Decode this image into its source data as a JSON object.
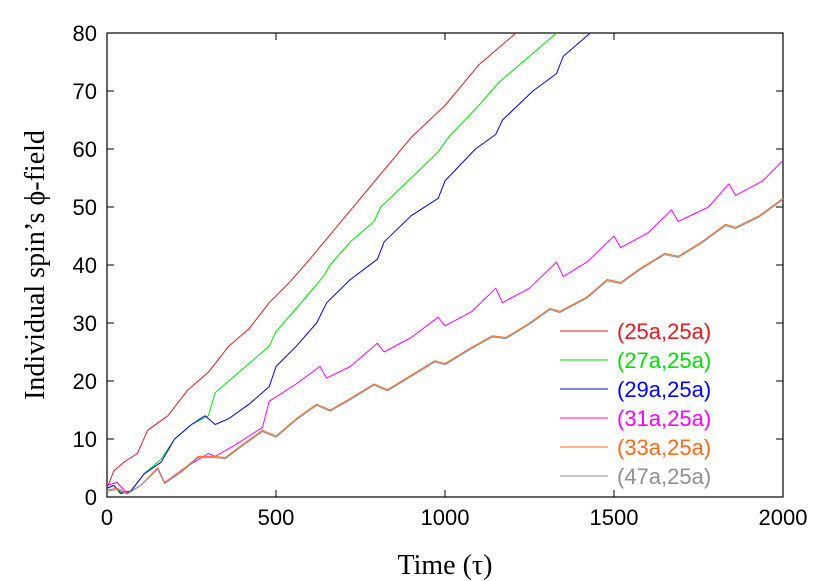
{
  "chart_data": {
    "type": "line",
    "title": "",
    "xlabel": "Time (τ)",
    "ylabel": "Individual spin’s ϕ-field",
    "xlim": [
      0,
      2000
    ],
    "ylim": [
      0,
      80
    ],
    "xticks": [
      0,
      500,
      1000,
      1500,
      2000
    ],
    "yticks": [
      0,
      10,
      20,
      30,
      40,
      50,
      60,
      70,
      80
    ],
    "grid": false,
    "legend_position": "bottom-right",
    "series": [
      {
        "name": "(25a,25a)",
        "color": "#e41a1c",
        "points": [
          [
            0,
            1.5
          ],
          [
            20,
            4.5
          ],
          [
            50,
            6.0
          ],
          [
            90,
            7.5
          ],
          [
            120,
            11.5
          ],
          [
            180,
            14.0
          ],
          [
            240,
            18.5
          ],
          [
            300,
            21.5
          ],
          [
            360,
            26.0
          ],
          [
            420,
            29.0
          ],
          [
            480,
            33.5
          ],
          [
            540,
            37.0
          ],
          [
            600,
            41.0
          ],
          [
            700,
            48.0
          ],
          [
            800,
            55.0
          ],
          [
            900,
            62.0
          ],
          [
            1000,
            67.5
          ],
          [
            1100,
            74.5
          ],
          [
            1210,
            80.0
          ]
        ]
      },
      {
        "name": "(27a,25a)",
        "color": "#00e000",
        "points": [
          [
            0,
            1.5
          ],
          [
            20,
            2.0
          ],
          [
            40,
            0.8
          ],
          [
            70,
            1.0
          ],
          [
            110,
            4.0
          ],
          [
            160,
            6.5
          ],
          [
            200,
            10.0
          ],
          [
            250,
            12.5
          ],
          [
            300,
            14.0
          ],
          [
            320,
            18.0
          ],
          [
            370,
            20.5
          ],
          [
            420,
            23.0
          ],
          [
            480,
            26.0
          ],
          [
            500,
            28.5
          ],
          [
            560,
            32.5
          ],
          [
            640,
            38.0
          ],
          [
            660,
            40.0
          ],
          [
            720,
            44.0
          ],
          [
            790,
            47.5
          ],
          [
            810,
            50.0
          ],
          [
            900,
            55.0
          ],
          [
            980,
            59.5
          ],
          [
            1010,
            62.0
          ],
          [
            1100,
            67.5
          ],
          [
            1160,
            71.5
          ],
          [
            1250,
            76.0
          ],
          [
            1330,
            80.0
          ]
        ]
      },
      {
        "name": "(29a,25a)",
        "color": "#0000ff",
        "points": [
          [
            0,
            1.5
          ],
          [
            20,
            2.0
          ],
          [
            40,
            0.6
          ],
          [
            70,
            1.0
          ],
          [
            110,
            4.0
          ],
          [
            160,
            6.0
          ],
          [
            200,
            10.0
          ],
          [
            250,
            12.5
          ],
          [
            290,
            14.0
          ],
          [
            320,
            12.5
          ],
          [
            360,
            13.5
          ],
          [
            420,
            16.0
          ],
          [
            480,
            19.0
          ],
          [
            500,
            22.5
          ],
          [
            560,
            26.0
          ],
          [
            620,
            30.0
          ],
          [
            650,
            33.5
          ],
          [
            720,
            37.5
          ],
          [
            800,
            41.0
          ],
          [
            820,
            44.0
          ],
          [
            900,
            48.5
          ],
          [
            980,
            51.5
          ],
          [
            1000,
            54.5
          ],
          [
            1090,
            60.0
          ],
          [
            1150,
            62.5
          ],
          [
            1170,
            65.0
          ],
          [
            1260,
            70.0
          ],
          [
            1330,
            73.0
          ],
          [
            1350,
            76.0
          ],
          [
            1430,
            80.0
          ]
        ]
      },
      {
        "name": "(31a,25a)",
        "color": "#ff00ff",
        "points": [
          [
            0,
            2.0
          ],
          [
            30,
            2.5
          ],
          [
            60,
            0.6
          ],
          [
            100,
            2.0
          ],
          [
            150,
            5.0
          ],
          [
            170,
            2.5
          ],
          [
            230,
            5.0
          ],
          [
            300,
            7.5
          ],
          [
            320,
            7.0
          ],
          [
            380,
            9.0
          ],
          [
            460,
            12.0
          ],
          [
            480,
            16.5
          ],
          [
            560,
            19.5
          ],
          [
            630,
            22.5
          ],
          [
            650,
            20.5
          ],
          [
            720,
            22.5
          ],
          [
            800,
            26.5
          ],
          [
            820,
            25.0
          ],
          [
            900,
            27.5
          ],
          [
            980,
            31.0
          ],
          [
            1000,
            29.5
          ],
          [
            1080,
            32.0
          ],
          [
            1150,
            36.0
          ],
          [
            1170,
            33.5
          ],
          [
            1250,
            36.0
          ],
          [
            1330,
            40.5
          ],
          [
            1350,
            38.0
          ],
          [
            1420,
            40.5
          ],
          [
            1500,
            45.0
          ],
          [
            1520,
            43.0
          ],
          [
            1600,
            45.5
          ],
          [
            1670,
            49.5
          ],
          [
            1690,
            47.5
          ],
          [
            1780,
            50.0
          ],
          [
            1840,
            54.0
          ],
          [
            1860,
            52.0
          ],
          [
            1940,
            54.5
          ],
          [
            2000,
            58.0
          ]
        ]
      },
      {
        "name": "(33a,25a)",
        "color": "#ff6a1a",
        "points": [
          [
            0,
            1.2
          ],
          [
            30,
            1.5
          ],
          [
            60,
            0.6
          ],
          [
            100,
            2.0
          ],
          [
            150,
            5.0
          ],
          [
            170,
            2.5
          ],
          [
            220,
            4.5
          ],
          [
            270,
            7.0
          ],
          [
            320,
            7.0
          ],
          [
            350,
            6.8
          ],
          [
            400,
            9.0
          ],
          [
            460,
            11.5
          ],
          [
            500,
            10.5
          ],
          [
            560,
            13.5
          ],
          [
            620,
            16.0
          ],
          [
            660,
            15.0
          ],
          [
            720,
            17.0
          ],
          [
            790,
            19.5
          ],
          [
            830,
            18.5
          ],
          [
            900,
            21.0
          ],
          [
            970,
            23.5
          ],
          [
            1000,
            23.0
          ],
          [
            1070,
            25.5
          ],
          [
            1140,
            27.8
          ],
          [
            1180,
            27.5
          ],
          [
            1250,
            30.0
          ],
          [
            1310,
            32.5
          ],
          [
            1340,
            32.0
          ],
          [
            1420,
            34.5
          ],
          [
            1480,
            37.5
          ],
          [
            1520,
            37.0
          ],
          [
            1580,
            39.5
          ],
          [
            1650,
            42.0
          ],
          [
            1690,
            41.5
          ],
          [
            1760,
            44.0
          ],
          [
            1830,
            47.0
          ],
          [
            1860,
            46.5
          ],
          [
            1930,
            48.5
          ],
          [
            2000,
            51.5
          ]
        ]
      },
      {
        "name": "(47a,25a)",
        "color": "#909090",
        "points": [
          [
            0,
            1.0
          ],
          [
            30,
            1.3
          ],
          [
            60,
            0.5
          ],
          [
            100,
            2.0
          ],
          [
            150,
            4.8
          ],
          [
            170,
            2.3
          ],
          [
            220,
            4.3
          ],
          [
            270,
            6.8
          ],
          [
            320,
            6.8
          ],
          [
            350,
            6.6
          ],
          [
            400,
            8.8
          ],
          [
            460,
            11.3
          ],
          [
            500,
            10.3
          ],
          [
            560,
            13.3
          ],
          [
            620,
            15.8
          ],
          [
            660,
            14.8
          ],
          [
            720,
            16.8
          ],
          [
            790,
            19.3
          ],
          [
            830,
            18.3
          ],
          [
            900,
            20.8
          ],
          [
            970,
            23.3
          ],
          [
            1000,
            22.8
          ],
          [
            1070,
            25.3
          ],
          [
            1140,
            27.6
          ],
          [
            1180,
            27.3
          ],
          [
            1250,
            29.8
          ],
          [
            1310,
            32.3
          ],
          [
            1340,
            31.8
          ],
          [
            1420,
            34.3
          ],
          [
            1480,
            37.3
          ],
          [
            1520,
            36.8
          ],
          [
            1580,
            39.3
          ],
          [
            1650,
            41.8
          ],
          [
            1690,
            41.3
          ],
          [
            1760,
            43.8
          ],
          [
            1830,
            46.8
          ],
          [
            1860,
            46.3
          ],
          [
            1930,
            48.3
          ],
          [
            2000,
            51.3
          ]
        ]
      }
    ]
  }
}
